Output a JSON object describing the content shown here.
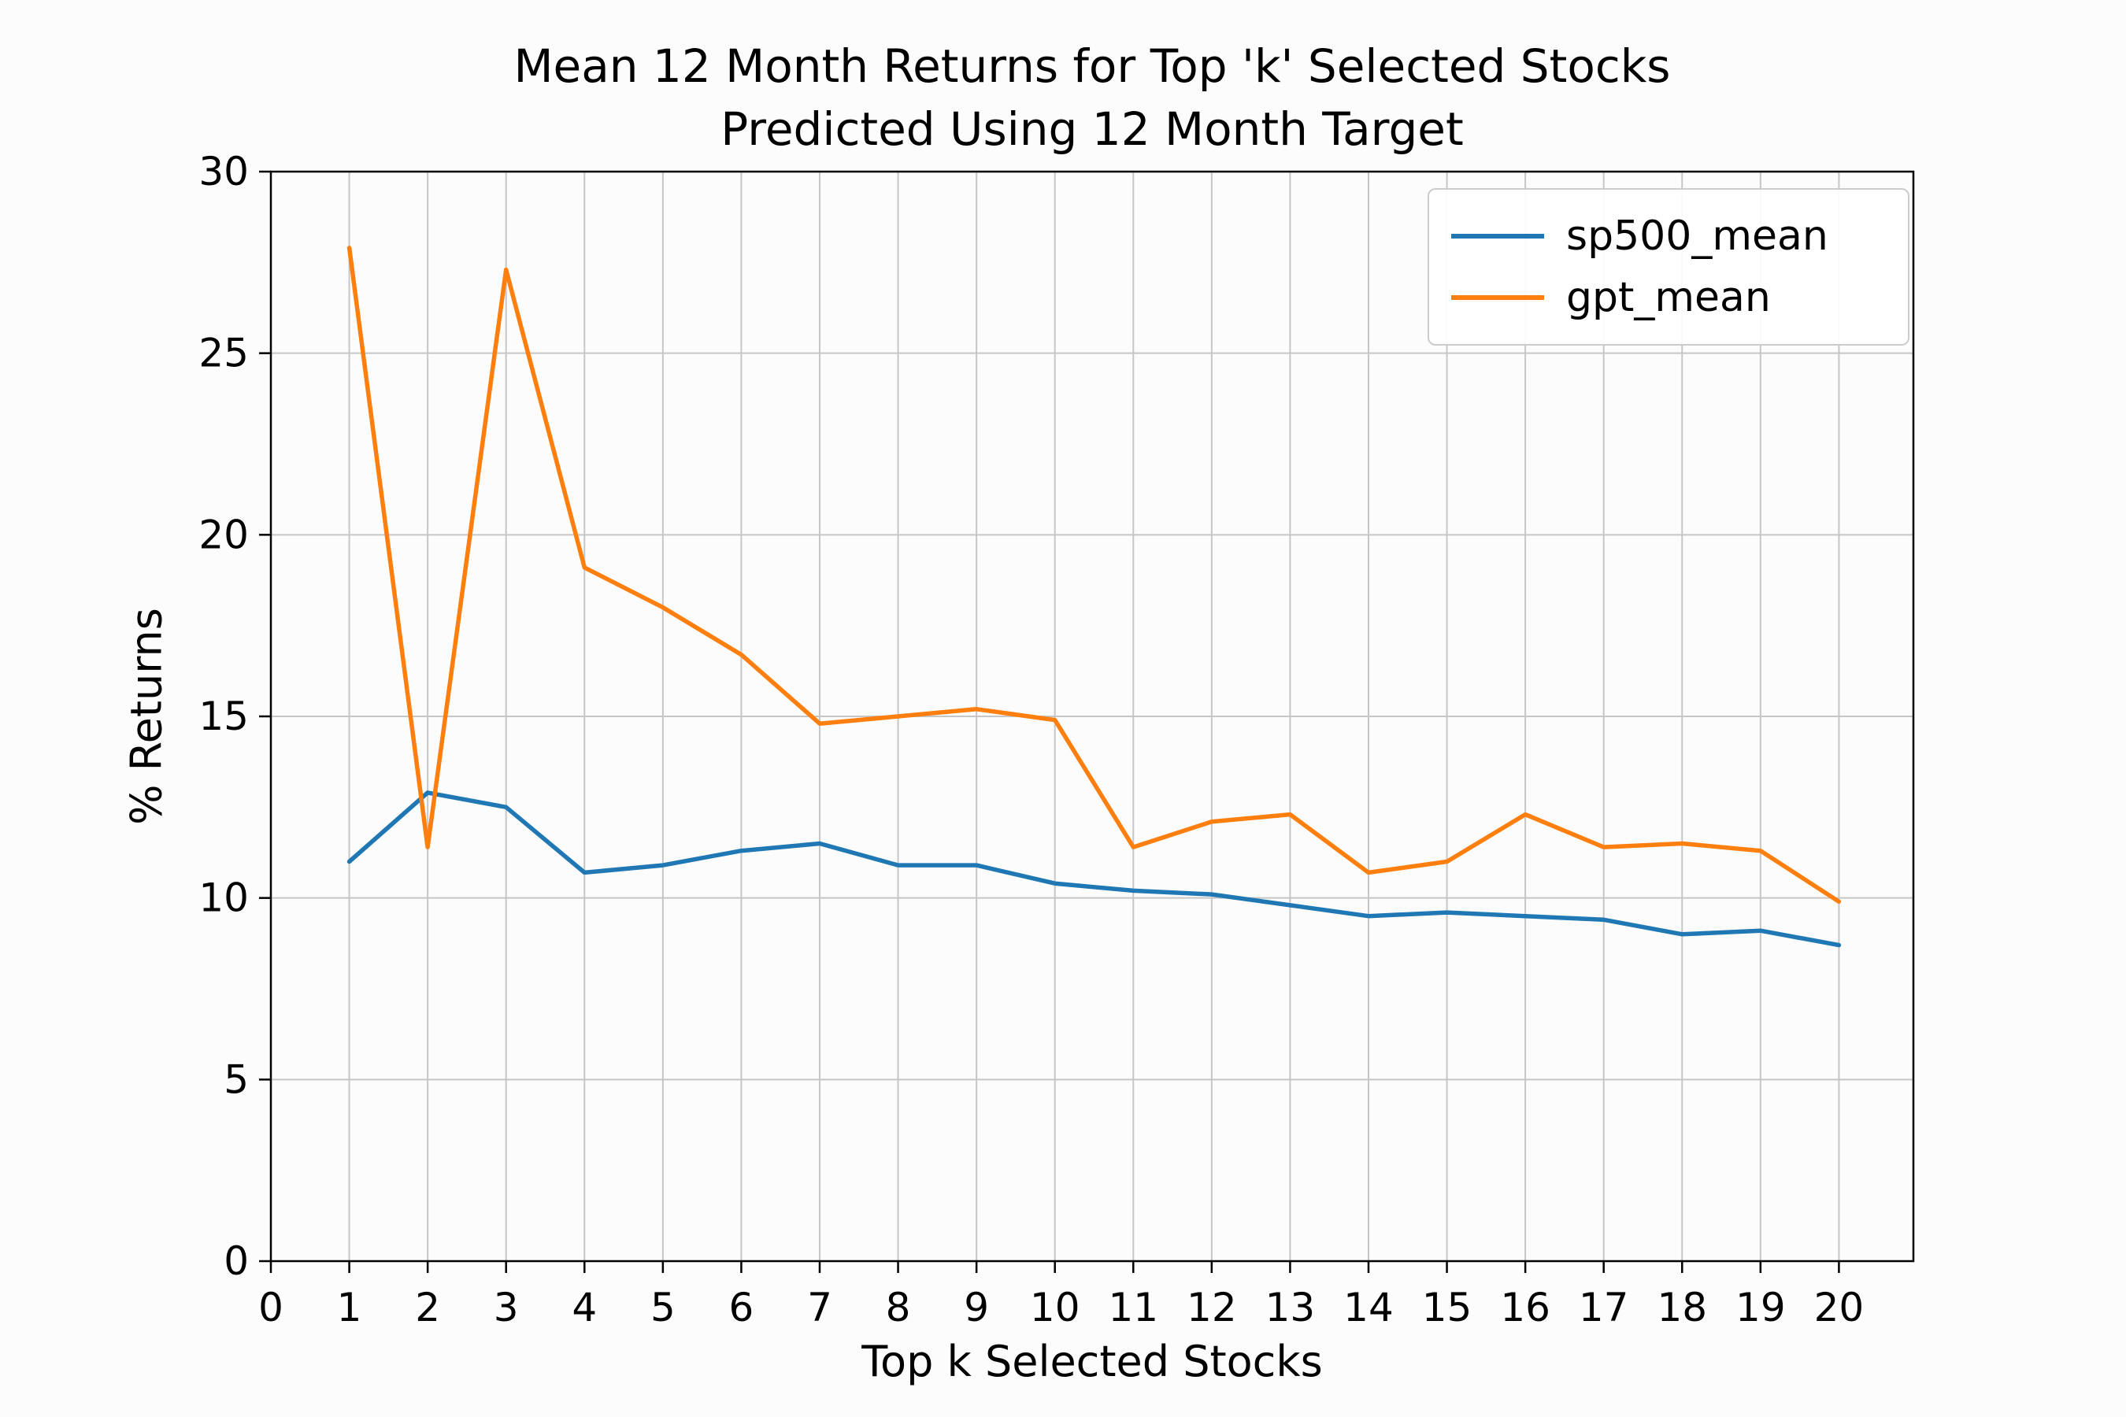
{
  "chart_data": {
    "type": "line",
    "title_lines": [
      "Mean 12 Month Returns for Top 'k' Selected Stocks",
      "Predicted Using 12 Month Target"
    ],
    "xlabel": "Top k Selected Stocks",
    "ylabel": "% Returns",
    "xlim": [
      0,
      20.95
    ],
    "ylim": [
      0,
      30
    ],
    "xticks": [
      0,
      1,
      2,
      3,
      4,
      5,
      6,
      7,
      8,
      9,
      10,
      11,
      12,
      13,
      14,
      15,
      16,
      17,
      18,
      19,
      20
    ],
    "yticks": [
      0,
      5,
      10,
      15,
      20,
      25,
      30
    ],
    "grid": true,
    "grid_color": "#c6c6c6",
    "axis_color": "#000000",
    "background_color": "#fcfcfc",
    "x": [
      1,
      2,
      3,
      4,
      5,
      6,
      7,
      8,
      9,
      10,
      11,
      12,
      13,
      14,
      15,
      16,
      17,
      18,
      19,
      20
    ],
    "series": [
      {
        "name": "sp500_mean",
        "color": "#1f77b4",
        "values": [
          11.0,
          12.9,
          12.5,
          10.7,
          10.9,
          11.3,
          11.5,
          10.9,
          10.9,
          10.4,
          10.2,
          10.1,
          9.8,
          9.5,
          9.6,
          9.5,
          9.4,
          9.0,
          9.1,
          8.7
        ]
      },
      {
        "name": "gpt_mean",
        "color": "#ff7f0e",
        "values": [
          27.9,
          11.4,
          27.3,
          19.1,
          18.0,
          16.7,
          14.8,
          15.0,
          15.2,
          14.9,
          11.4,
          12.1,
          12.3,
          10.7,
          11.0,
          12.3,
          11.4,
          11.5,
          11.3,
          9.9
        ]
      }
    ],
    "legend": {
      "position": "upper right",
      "entries": [
        "sp500_mean",
        "gpt_mean"
      ]
    }
  }
}
